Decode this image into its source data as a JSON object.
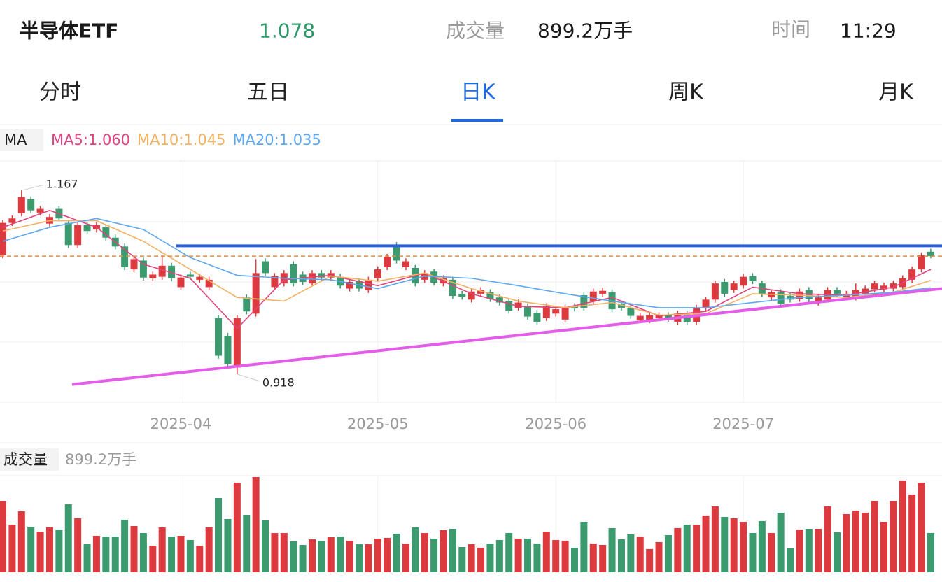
{
  "header": {
    "name": "半导体ETF",
    "price": "1.078",
    "volume_label": "成交量",
    "volume": "899.2万手",
    "time_label": "时间",
    "time": "11:29"
  },
  "tabs": [
    "分时",
    "五日",
    "日K",
    "周K",
    "月K"
  ],
  "active_tab": 2,
  "chart_data": [
    {
      "type": "candlestick",
      "legend_title": "MA",
      "up_color": "#dd3a3f",
      "down_color": "#3b9a6e",
      "xlim": [
        -0.3,
        100.2
      ],
      "ylim": [
        0.88,
        1.207
      ],
      "categories": [
        null,
        null,
        null,
        null,
        null,
        null,
        null,
        null,
        null,
        null,
        null,
        null,
        null,
        null,
        null,
        null,
        null,
        null,
        null,
        "2025-04",
        null,
        null,
        null,
        null,
        null,
        null,
        null,
        null,
        null,
        null,
        null,
        null,
        null,
        null,
        null,
        null,
        null,
        null,
        null,
        null,
        "2025-05",
        null,
        null,
        null,
        null,
        null,
        null,
        null,
        null,
        null,
        null,
        null,
        null,
        null,
        null,
        null,
        null,
        null,
        null,
        "2025-06",
        null,
        null,
        null,
        null,
        null,
        null,
        null,
        null,
        null,
        null,
        null,
        null,
        null,
        null,
        null,
        null,
        null,
        null,
        null,
        "2025-07",
        null,
        null,
        null,
        null,
        null,
        null,
        null,
        null,
        null,
        null,
        null,
        null,
        null,
        null,
        null,
        null,
        null,
        null,
        null,
        null
      ],
      "open": [
        1.079,
        1.123,
        1.136,
        1.155,
        1.137,
        1.122,
        1.142,
        1.123,
        1.093,
        1.12,
        1.114,
        1.117,
        1.103,
        1.091,
        1.06,
        1.072,
        1.048,
        1.05,
        1.065,
        1.036,
        1.053,
        1.046,
        1.036,
        0.994,
        0.97,
        0.927,
        1.022,
        1.0,
        1.071,
        1.036,
        1.041,
        1.067,
        1.053,
        1.041,
        1.055,
        1.049,
        1.05,
        1.034,
        1.044,
        1.032,
        1.048,
        1.063,
        1.093,
        1.063,
        1.062,
        1.046,
        1.057,
        1.041,
        1.046,
        1.027,
        1.019,
        1.027,
        1.029,
        1.022,
        1.017,
        1.008,
        1.01,
        1.001,
        0.994,
        1.0,
        0.992,
        1.01,
        1.025,
        1.017,
        1.027,
        1.029,
        1.013,
        1.008,
        0.991,
        0.991,
        0.994,
        0.998,
        0.989,
        1.0,
        0.989,
        1.008,
        1.019,
        1.043,
        1.032,
        1.038,
        1.051,
        1.041,
        1.022,
        1.029,
        1.024,
        1.02,
        1.032,
        1.015,
        1.019,
        1.032,
        1.022,
        1.022,
        1.027,
        1.033,
        1.033,
        1.034,
        1.036,
        1.046,
        1.06,
        1.084
      ],
      "high": [
        1.127,
        1.133,
        1.167,
        1.159,
        1.146,
        1.135,
        1.146,
        1.127,
        1.124,
        1.124,
        1.124,
        1.121,
        1.107,
        1.095,
        1.078,
        1.076,
        1.057,
        1.079,
        1.069,
        1.053,
        1.057,
        1.054,
        1.05,
        0.998,
        0.974,
        0.998,
        1.026,
        1.074,
        1.075,
        1.055,
        1.059,
        1.071,
        1.057,
        1.059,
        1.059,
        1.059,
        1.054,
        1.047,
        1.048,
        1.05,
        1.064,
        1.081,
        1.097,
        1.075,
        1.066,
        1.059,
        1.061,
        1.052,
        1.05,
        1.031,
        1.034,
        1.036,
        1.033,
        1.026,
        1.021,
        1.019,
        1.014,
        1.005,
        1.014,
        1.01,
        1.012,
        1.014,
        1.029,
        1.034,
        1.035,
        1.033,
        1.017,
        1.012,
        1.001,
        1.002,
        1.002,
        1.002,
        1.004,
        1.004,
        1.012,
        1.023,
        1.045,
        1.047,
        1.045,
        1.054,
        1.055,
        1.045,
        1.033,
        1.033,
        1.028,
        1.034,
        1.036,
        1.026,
        1.036,
        1.036,
        1.031,
        1.041,
        1.038,
        1.045,
        1.042,
        1.045,
        1.052,
        1.064,
        1.083,
        1.088
      ],
      "low": [
        1.075,
        1.119,
        1.132,
        1.136,
        1.133,
        1.118,
        1.125,
        1.089,
        1.089,
        1.108,
        1.11,
        1.099,
        1.087,
        1.059,
        1.056,
        1.045,
        1.044,
        1.046,
        1.044,
        1.032,
        1.046,
        1.042,
        1.032,
        0.939,
        0.928,
        0.918,
        0.999,
        0.996,
        1.051,
        1.032,
        1.037,
        1.037,
        1.039,
        1.037,
        1.045,
        1.045,
        1.034,
        1.03,
        1.03,
        1.028,
        1.044,
        1.059,
        1.068,
        1.059,
        1.037,
        1.042,
        1.038,
        1.037,
        1.02,
        1.019,
        1.015,
        1.023,
        1.016,
        1.011,
        1.0,
        1.004,
        0.992,
        0.985,
        0.99,
        0.996,
        0.988,
        1.003,
        1.004,
        1.013,
        1.023,
        1.002,
        1.004,
        0.993,
        0.987,
        0.987,
        0.99,
        0.989,
        0.985,
        0.985,
        0.985,
        1.004,
        1.015,
        1.023,
        1.028,
        1.034,
        1.04,
        1.023,
        1.018,
        1.009,
        1.015,
        1.016,
        1.016,
        1.011,
        1.015,
        1.023,
        1.018,
        1.018,
        1.023,
        1.029,
        1.029,
        1.03,
        1.032,
        1.042,
        1.056,
        1.075
      ],
      "close": [
        1.123,
        1.129,
        1.158,
        1.14,
        1.142,
        1.131,
        1.129,
        1.093,
        1.12,
        1.112,
        1.12,
        1.103,
        1.091,
        1.063,
        1.074,
        1.049,
        1.053,
        1.065,
        1.048,
        1.049,
        1.05,
        1.05,
        1.046,
        0.943,
        0.932,
        0.994,
        1.003,
        1.055,
        1.055,
        1.051,
        1.055,
        1.041,
        1.043,
        1.055,
        1.049,
        1.055,
        1.038,
        1.043,
        1.034,
        1.046,
        1.06,
        1.077,
        1.072,
        1.071,
        1.041,
        1.055,
        1.042,
        1.048,
        1.024,
        1.023,
        1.03,
        1.032,
        1.02,
        1.015,
        1.004,
        1.015,
        0.996,
        0.989,
        1.01,
        1.006,
        1.008,
        1.007,
        1.008,
        1.03,
        1.031,
        1.006,
        1.008,
        0.997,
        0.997,
        0.998,
        0.998,
        0.993,
        1.0,
        0.989,
        1.008,
        1.019,
        1.041,
        1.027,
        1.041,
        1.05,
        1.044,
        1.027,
        1.029,
        1.013,
        1.019,
        1.03,
        1.02,
        1.022,
        1.032,
        1.027,
        1.027,
        1.032,
        1.034,
        1.041,
        1.038,
        1.041,
        1.048,
        1.06,
        1.079,
        1.078
      ],
      "series": [
        {
          "name": "MA5:1.060",
          "color": "#e0457d",
          "x": [
            0,
            5,
            10,
            15,
            20,
            25,
            30,
            35,
            40,
            45,
            50,
            55,
            60,
            65,
            70,
            75,
            80,
            85,
            90,
            95,
            99
          ],
          "values": [
            1.117,
            1.14,
            1.117,
            1.067,
            1.048,
            0.98,
            1.046,
            1.052,
            1.038,
            1.055,
            1.027,
            1.01,
            1.008,
            1.022,
            0.997,
            1.003,
            1.036,
            1.027,
            1.025,
            1.036,
            1.06
          ]
        },
        {
          "name": "MA10:1.045",
          "color": "#f3b163",
          "x": [
            0,
            5,
            10,
            15,
            20,
            25,
            30,
            35,
            40,
            45,
            50,
            55,
            60,
            65,
            70,
            75,
            80,
            85,
            90,
            95,
            99
          ],
          "values": [
            1.112,
            1.126,
            1.126,
            1.098,
            1.06,
            1.022,
            1.017,
            1.051,
            1.044,
            1.055,
            1.034,
            1.017,
            1.008,
            1.015,
            0.998,
            1.0,
            1.027,
            1.025,
            1.022,
            1.029,
            1.045
          ]
        },
        {
          "name": "MA20:1.035",
          "color": "#5ea8f0",
          "x": [
            0,
            5,
            10,
            15,
            20,
            25,
            30,
            35,
            40,
            45,
            50,
            55,
            60,
            65,
            70,
            75,
            80,
            85,
            90,
            95,
            99
          ],
          "values": [
            1.098,
            1.117,
            1.129,
            1.114,
            1.076,
            1.052,
            1.048,
            1.046,
            1.034,
            1.051,
            1.048,
            1.038,
            1.027,
            1.017,
            1.008,
            1.008,
            1.015,
            1.022,
            1.025,
            1.029,
            1.035
          ]
        }
      ],
      "lines": [
        {
          "color": "#2a5fe0",
          "x": [
            18.5,
            100.2
          ],
          "values": [
            1.092,
            1.092
          ]
        },
        {
          "color": "#e35de8",
          "x": [
            7.4,
            100.2
          ],
          "values": [
            0.904,
            1.034
          ]
        }
      ]
    },
    {
      "type": "bar",
      "title": "成交量",
      "subtitle": "899.2万手",
      "ylim": [
        0,
        2216
      ],
      "values": [
        1638,
        1092,
        1397,
        1044,
        931,
        1028,
        980,
        1558,
        1237,
        642,
        835,
        819,
        819,
        1205,
        1060,
        899,
        610,
        1028,
        819,
        835,
        739,
        610,
        1028,
        1702,
        1221,
        2056,
        1317,
        2184,
        1188,
        899,
        899,
        707,
        626,
        755,
        723,
        803,
        819,
        723,
        642,
        642,
        771,
        787,
        883,
        658,
        1028,
        899,
        771,
        964,
        996,
        578,
        642,
        562,
        658,
        739,
        899,
        771,
        771,
        658,
        931,
        739,
        723,
        562,
        1156,
        658,
        626,
        1012,
        755,
        867,
        819,
        530,
        691,
        851,
        1012,
        1092,
        1092,
        1301,
        1510,
        1269,
        1237,
        1156,
        899,
        1172,
        899,
        1365,
        546,
        980,
        996,
        996,
        1510,
        915,
        1333,
        1413,
        1365,
        1638,
        1156,
        1638,
        2104,
        1783,
        2056,
        899.2
      ]
    }
  ]
}
